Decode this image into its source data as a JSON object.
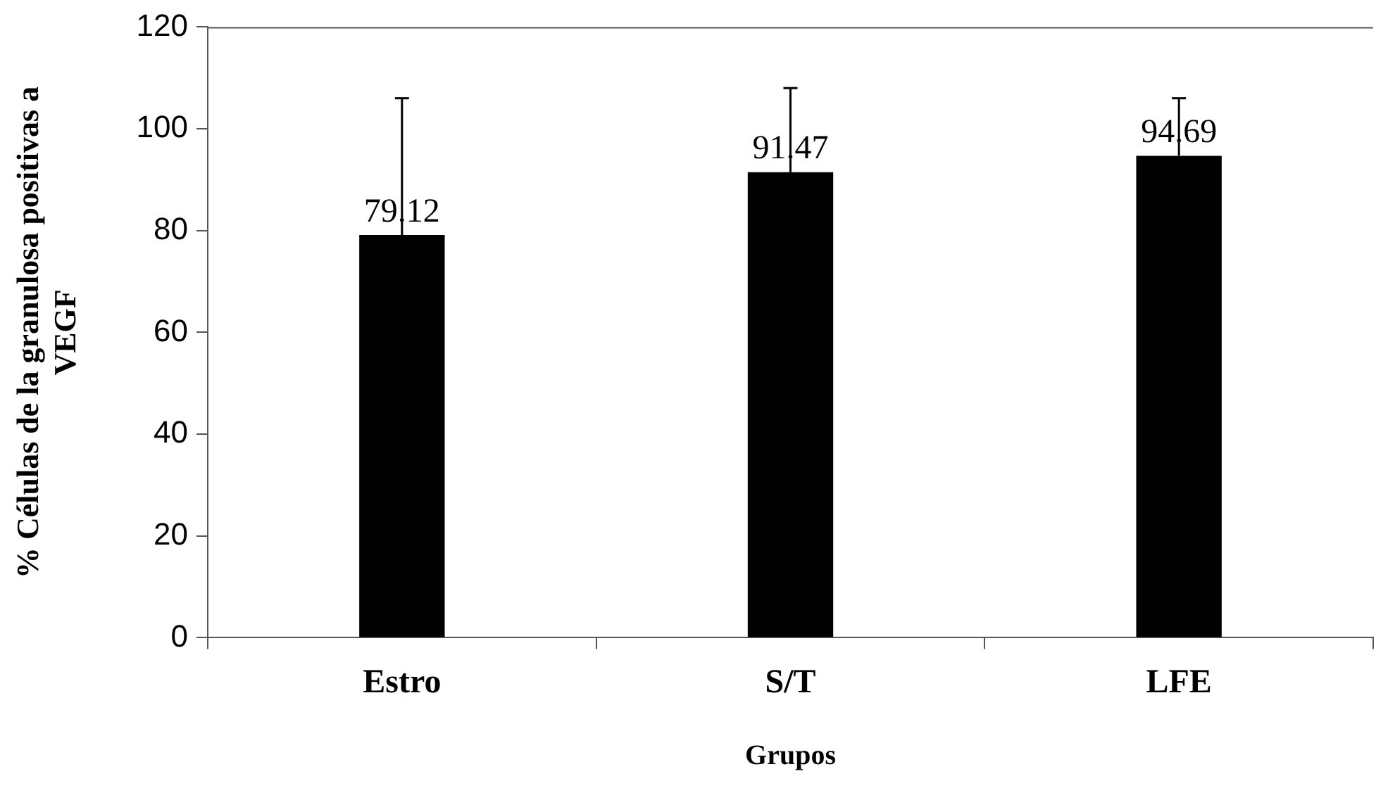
{
  "chart_data": {
    "type": "bar",
    "xlabel": "Grupos",
    "ylabel": "% Células de la granulosa positivas a VEGF",
    "categories": [
      "Estro",
      "S/T",
      "LFE"
    ],
    "values": [
      79.12,
      91.47,
      94.69
    ],
    "errors": [
      [
        79.12,
        106
      ],
      [
        91.47,
        108
      ],
      [
        94.69,
        106
      ]
    ],
    "color": "#000000",
    "ylim": [
      0,
      120
    ],
    "yticks": [
      0,
      20,
      40,
      60,
      80,
      100,
      120
    ],
    "grid": false,
    "legend": false,
    "data_labels": true
  }
}
